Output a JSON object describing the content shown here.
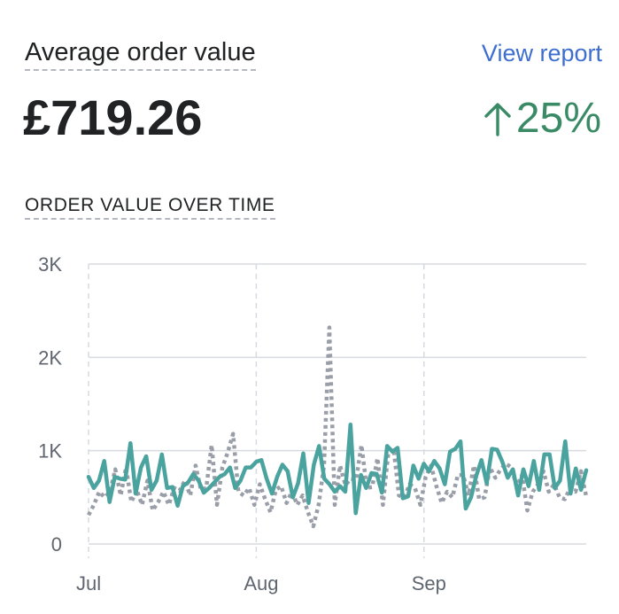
{
  "header": {
    "title": "Average order value",
    "view_report": "View report"
  },
  "metric": {
    "value": "£719.26",
    "change": "25%",
    "change_direction": "up",
    "change_color": "#3a8a66"
  },
  "section_title": "ORDER VALUE OVER TIME",
  "colors": {
    "primary_series": "#4aa39e",
    "comparison_series": "#9a9ea8",
    "link": "#3e6fd0",
    "grid": "#d7dadf"
  },
  "chart_data": {
    "type": "line",
    "title": "ORDER VALUE OVER TIME",
    "y_ticks": [
      {
        "value": 0,
        "label": "0"
      },
      {
        "value": 1000,
        "label": "1K"
      },
      {
        "value": 2000,
        "label": "2K"
      },
      {
        "value": 3000,
        "label": "3K"
      }
    ],
    "ylim": [
      0,
      3000
    ],
    "x_ticks": [
      {
        "day": 0,
        "label": "Jul"
      },
      {
        "day": 31,
        "label": "Aug"
      },
      {
        "day": 62,
        "label": "Sep"
      }
    ],
    "xlim": [
      0,
      92
    ],
    "grid": true,
    "series": [
      {
        "style": "solid",
        "color": "#4aa39e",
        "values": [
          720,
          600,
          680,
          890,
          450,
          720,
          700,
          690,
          1080,
          540,
          820,
          940,
          580,
          680,
          960,
          600,
          610,
          410,
          620,
          660,
          750,
          680,
          550,
          600,
          660,
          720,
          750,
          820,
          600,
          680,
          820,
          820,
          880,
          900,
          700,
          540,
          720,
          850,
          780,
          500,
          650,
          970,
          440,
          850,
          1050,
          700,
          640,
          560,
          620,
          560,
          1280,
          330,
          740,
          600,
          760,
          750,
          550,
          1050,
          990,
          1030,
          490,
          510,
          840,
          700,
          860,
          780,
          890,
          810,
          640,
          990,
          1020,
          1100,
          380,
          500,
          730,
          900,
          650,
          1020,
          1010,
          880,
          710,
          800,
          520,
          800,
          620,
          890,
          580,
          960,
          960,
          600,
          680,
          1100,
          540,
          810,
          580,
          790
        ]
      },
      {
        "style": "dotted",
        "color": "#9a9ea8",
        "values": [
          310,
          420,
          560,
          500,
          560,
          800,
          520,
          820,
          450,
          580,
          420,
          680,
          360,
          450,
          560,
          420,
          600,
          570,
          680,
          520,
          840,
          580,
          600,
          1060,
          420,
          820,
          980,
          1180,
          560,
          520,
          600,
          420,
          640,
          480,
          340,
          580,
          620,
          440,
          560,
          420,
          520,
          340,
          190,
          420,
          840,
          2320,
          420,
          840,
          630,
          700,
          690,
          1060,
          600,
          610,
          920,
          420,
          970,
          1020,
          520,
          500,
          640,
          600,
          420,
          720,
          840,
          620,
          440,
          560,
          500,
          740,
          740,
          520,
          840,
          480,
          500,
          820,
          710,
          800,
          860,
          820,
          620,
          740,
          360,
          560,
          640,
          780,
          560,
          640,
          500,
          480,
          600,
          560,
          780,
          510
        ]
      }
    ]
  }
}
